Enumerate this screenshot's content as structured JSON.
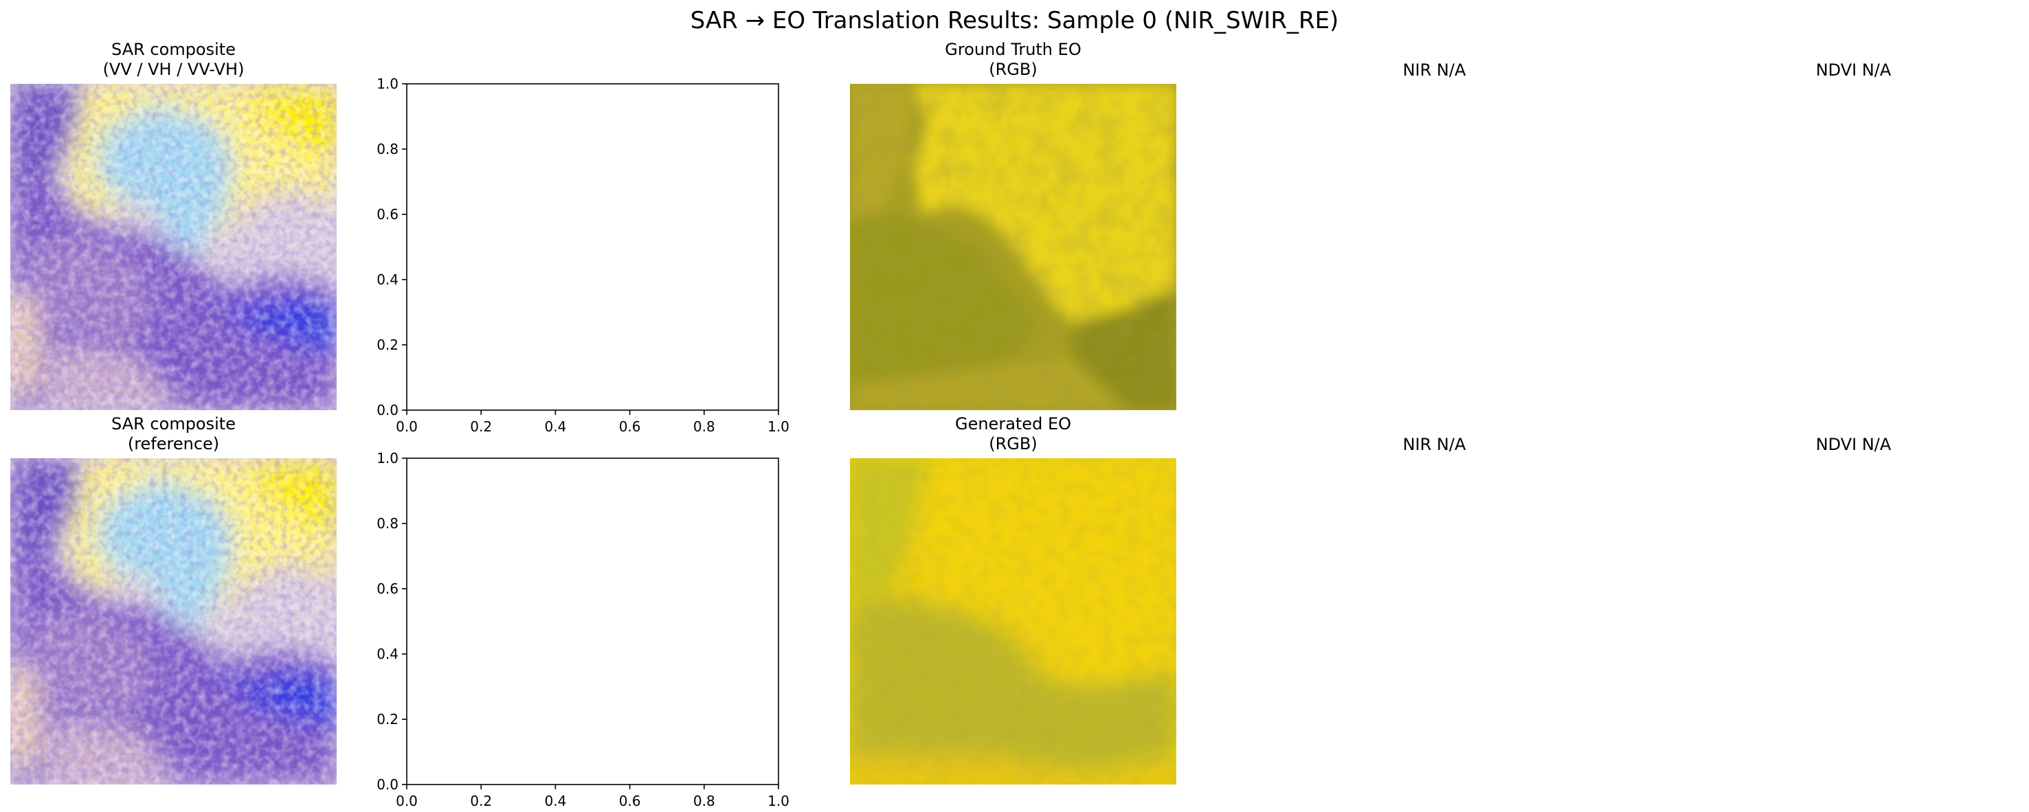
{
  "figure": {
    "title": "SAR → EO Translation Results: Sample 0 (NIR_SWIR_RE)"
  },
  "panels": {
    "row0": {
      "sar_title": "SAR composite\n(VV / VH / VV-VH)",
      "gt_title": "Ground Truth EO\n(RGB)",
      "nir_title": "NIR N/A",
      "ndvi_title": "NDVI N/A"
    },
    "row1": {
      "sar_title": "SAR composite\n(reference)",
      "gen_title": "Generated EO\n(RGB)",
      "nir_title": "NIR N/A",
      "ndvi_title": "NDVI N/A"
    }
  },
  "image_palettes": {
    "sar": [
      "#ffee00",
      "#fff9c4",
      "#a8e3f5",
      "#6fc7ff",
      "#c9b3d9",
      "#5a3fb5",
      "#3a1fd0",
      "#1f3af0",
      "#e8b88a"
    ],
    "gt_eo": [
      "#e6cf1b",
      "#dcc520",
      "#c7b21c",
      "#9e9a1f",
      "#8a8a1c"
    ],
    "gen_eo": [
      "#f2d20a",
      "#e6c814",
      "#c8c21e",
      "#b8b52a",
      "#a8ae2c"
    ]
  },
  "chart_data": [
    {
      "type": "scatter",
      "panel": "row0-col1",
      "title": "",
      "xlabel": "",
      "ylabel": "",
      "xlim": [
        0,
        1
      ],
      "ylim": [
        0,
        1
      ],
      "series": [],
      "xticks": [
        "0.0",
        "0.2",
        "0.4",
        "0.6",
        "0.8",
        "1.0"
      ],
      "yticks": [
        "0.0",
        "0.2",
        "0.4",
        "0.6",
        "0.8",
        "1.0"
      ],
      "grid": false
    },
    {
      "type": "scatter",
      "panel": "row1-col1",
      "title": "",
      "xlabel": "",
      "ylabel": "",
      "xlim": [
        0,
        1
      ],
      "ylim": [
        0,
        1
      ],
      "series": [],
      "xticks": [
        "0.0",
        "0.2",
        "0.4",
        "0.6",
        "0.8",
        "1.0"
      ],
      "yticks": [
        "0.0",
        "0.2",
        "0.4",
        "0.6",
        "0.8",
        "1.0"
      ],
      "grid": false
    }
  ]
}
